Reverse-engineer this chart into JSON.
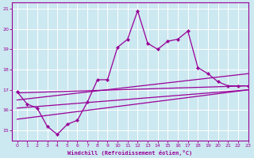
{
  "xlabel": "Windchill (Refroidissement éolien,°C)",
  "bg_color": "#cce8f0",
  "line_color": "#990099",
  "grid_color": "#ffffff",
  "x_hours": [
    0,
    1,
    2,
    3,
    4,
    5,
    6,
    7,
    8,
    9,
    10,
    11,
    12,
    13,
    14,
    15,
    16,
    17,
    18,
    19,
    20,
    21,
    22,
    23
  ],
  "line_main": [
    16.9,
    16.3,
    16.1,
    15.2,
    14.8,
    15.3,
    15.5,
    16.4,
    17.5,
    17.5,
    19.1,
    19.5,
    20.9,
    19.3,
    19.0,
    19.4,
    19.5,
    19.9,
    18.1,
    17.8,
    17.4,
    17.2,
    17.2,
    17.2
  ],
  "line_a": [
    [
      0,
      16.85
    ],
    [
      23,
      17.2
    ]
  ],
  "line_b": [
    [
      0,
      16.5
    ],
    [
      23,
      17.8
    ]
  ],
  "line_c": [
    [
      0,
      16.1
    ],
    [
      23,
      17.0
    ]
  ],
  "line_d": [
    [
      0,
      15.55
    ],
    [
      23,
      17.0
    ]
  ],
  "ylim": [
    14.5,
    21.3
  ],
  "xlim": [
    -0.5,
    23
  ],
  "yticks": [
    15,
    16,
    17,
    18,
    19,
    20,
    21
  ],
  "xticks": [
    0,
    1,
    2,
    3,
    4,
    5,
    6,
    7,
    8,
    9,
    10,
    11,
    12,
    13,
    14,
    15,
    16,
    17,
    18,
    19,
    20,
    21,
    22,
    23
  ]
}
